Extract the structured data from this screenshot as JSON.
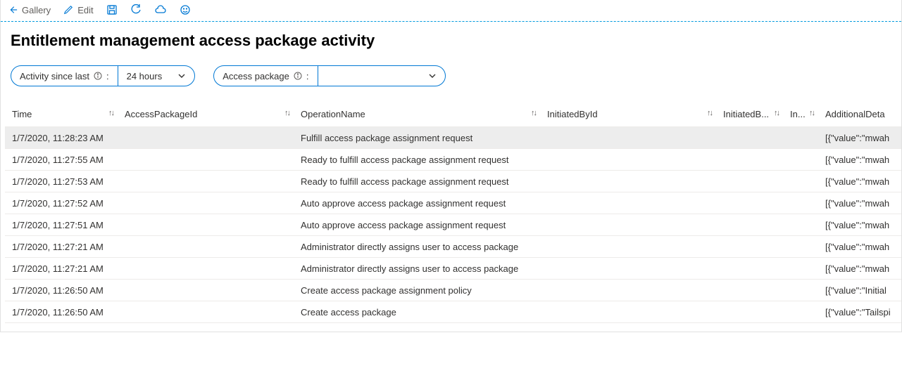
{
  "toolbar": {
    "gallery_label": "Gallery",
    "edit_label": "Edit"
  },
  "page_title": "Entitlement management access package activity",
  "filters": {
    "activity_label": "Activity since last",
    "activity_value": "24 hours",
    "access_package_label": "Access package",
    "access_package_value": ""
  },
  "table": {
    "columns": [
      {
        "key": "time",
        "label": "Time"
      },
      {
        "key": "pkgid",
        "label": "AccessPackageId"
      },
      {
        "key": "op",
        "label": "OperationName"
      },
      {
        "key": "initid",
        "label": "InitiatedById"
      },
      {
        "key": "initb",
        "label": "InitiatedB..."
      },
      {
        "key": "in",
        "label": "In..."
      },
      {
        "key": "add",
        "label": "AdditionalDeta"
      }
    ],
    "rows": [
      {
        "time": "1/7/2020, 11:28:23 AM",
        "pkgid": "",
        "op": "Fulfill access package assignment request",
        "initid": "",
        "initb": "",
        "in": "",
        "add": "[{\"value\":\"mwah",
        "selected": true
      },
      {
        "time": "1/7/2020, 11:27:55 AM",
        "pkgid": "",
        "op": "Ready to fulfill access package assignment request",
        "initid": "",
        "initb": "",
        "in": "",
        "add": "[{\"value\":\"mwah"
      },
      {
        "time": "1/7/2020, 11:27:53 AM",
        "pkgid": "",
        "op": "Ready to fulfill access package assignment request",
        "initid": "",
        "initb": "",
        "in": "",
        "add": "[{\"value\":\"mwah"
      },
      {
        "time": "1/7/2020, 11:27:52 AM",
        "pkgid": "",
        "op": "Auto approve access package assignment request",
        "initid": "",
        "initb": "",
        "in": "",
        "add": "[{\"value\":\"mwah"
      },
      {
        "time": "1/7/2020, 11:27:51 AM",
        "pkgid": "",
        "op": "Auto approve access package assignment request",
        "initid": "",
        "initb": "",
        "in": "",
        "add": "[{\"value\":\"mwah"
      },
      {
        "time": "1/7/2020, 11:27:21 AM",
        "pkgid": "",
        "op": "Administrator directly assigns user to access package",
        "initid": "",
        "initb": "",
        "in": "",
        "add": "[{\"value\":\"mwah"
      },
      {
        "time": "1/7/2020, 11:27:21 AM",
        "pkgid": "",
        "op": "Administrator directly assigns user to access package",
        "initid": "",
        "initb": "",
        "in": "",
        "add": "[{\"value\":\"mwah"
      },
      {
        "time": "1/7/2020, 11:26:50 AM",
        "pkgid": "",
        "op": "Create access package assignment policy",
        "initid": "",
        "initb": "",
        "in": "",
        "add": "[{\"value\":\"Initial"
      },
      {
        "time": "1/7/2020, 11:26:50 AM",
        "pkgid": "",
        "op": "Create access package",
        "initid": "",
        "initb": "",
        "in": "",
        "add": "[{\"value\":\"Tailspi"
      }
    ]
  },
  "colors": {
    "accent": "#0078d4",
    "dashed_border": "#0099dd",
    "border": "#edebe9",
    "text": "#323130",
    "muted": "#605e5c",
    "row_selected": "#ededed"
  }
}
